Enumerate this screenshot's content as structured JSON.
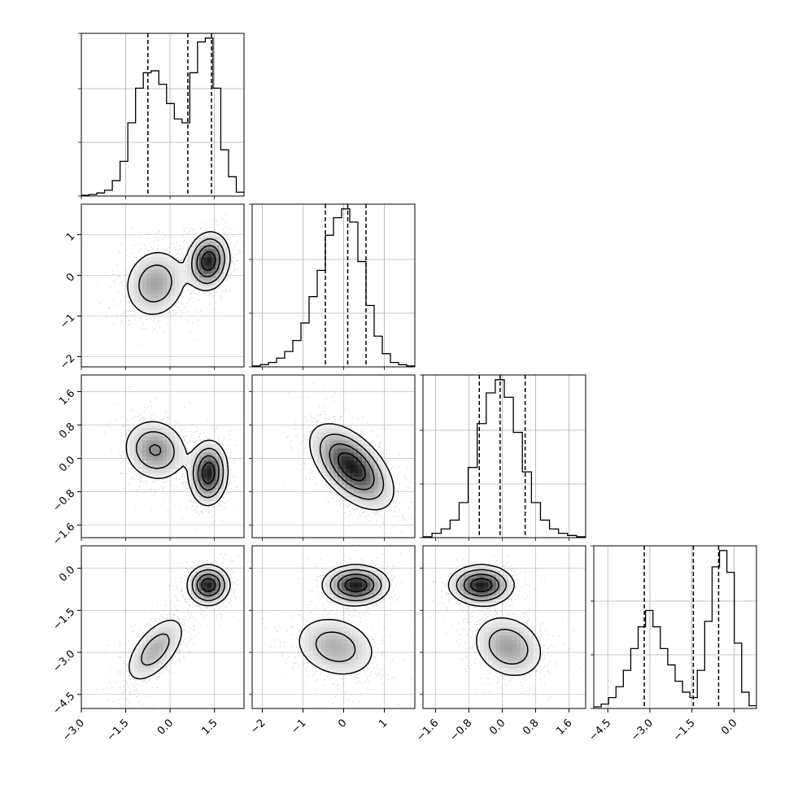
{
  "chart_data": {
    "type": "corner",
    "n_params": 4,
    "grid": true,
    "colors": {
      "points": "#808080",
      "contour": "#000000",
      "frame": "#000000",
      "grid": "#b0b0b0"
    },
    "params": [
      {
        "index": 0,
        "range": [
          -3.0,
          2.5
        ],
        "ticks": [
          -3.0,
          -1.5,
          0.0,
          1.5
        ],
        "tick_labels": [
          "−3.0",
          "−1.5",
          "0.0",
          "1.5"
        ]
      },
      {
        "index": 1,
        "range": [
          -2.25,
          1.75
        ],
        "ticks": [
          -2,
          -1,
          0,
          1
        ],
        "tick_labels": [
          "−2",
          "−1",
          "0",
          "1"
        ]
      },
      {
        "index": 2,
        "range": [
          -1.9,
          2.0
        ],
        "ticks": [
          -1.6,
          -0.8,
          0.0,
          0.8,
          1.6
        ],
        "tick_labels": [
          "−1.6",
          "−0.8",
          "0.0",
          "0.8",
          "1.6"
        ]
      },
      {
        "index": 3,
        "range": [
          -5.0,
          0.8
        ],
        "ticks": [
          -4.5,
          -3.0,
          -1.5,
          0.0
        ],
        "tick_labels": [
          "−4.5",
          "−3.0",
          "−1.5",
          "0.0"
        ]
      }
    ],
    "histograms": [
      {
        "param": 0,
        "bin_edges": [
          -3.0,
          2.5
        ],
        "counts": [
          0.2,
          0.4,
          0.8,
          1.5,
          4,
          9,
          19,
          28,
          32,
          32.5,
          29,
          24,
          20,
          19,
          32,
          40,
          41,
          28,
          12,
          5,
          1
        ],
        "quantiles": [
          -0.75,
          0.6,
          1.4
        ]
      },
      {
        "param": 1,
        "bin_edges": [
          -2.25,
          1.75
        ],
        "counts": [
          0.2,
          0.5,
          1,
          2,
          3.5,
          6,
          10,
          16,
          22,
          30,
          34,
          36,
          33,
          24,
          14,
          7,
          3,
          1,
          0.5,
          0.2
        ],
        "quantiles": [
          -0.45,
          0.1,
          0.55
        ]
      },
      {
        "param": 2,
        "bin_edges": [
          -1.9,
          2.0
        ],
        "counts": [
          0.2,
          1,
          2,
          4,
          8,
          16,
          26,
          33,
          36,
          32,
          24,
          15,
          8,
          4,
          2,
          1,
          0.5,
          0.2
        ],
        "quantiles": [
          -0.55,
          -0.05,
          0.55
        ]
      },
      {
        "param": 3,
        "bin_edges": [
          -5.0,
          0.8
        ],
        "counts": [
          0.3,
          0.8,
          2,
          4,
          7,
          11,
          15,
          18,
          15,
          11,
          8,
          5,
          3,
          2,
          7,
          16,
          26,
          29,
          25,
          12,
          3,
          0.5
        ],
        "quantiles": [
          -3.2,
          -1.45,
          -0.55
        ]
      }
    ],
    "joint": [
      {
        "x": 0,
        "y": 1,
        "components": [
          {
            "w": 0.5,
            "mx": -0.5,
            "my": -0.2,
            "sx": 0.55,
            "sy": 0.45,
            "rho": 0.1
          },
          {
            "w": 0.5,
            "mx": 1.3,
            "my": 0.35,
            "sx": 0.35,
            "sy": 0.35,
            "rho": 0.1
          }
        ]
      },
      {
        "x": 0,
        "y": 2,
        "components": [
          {
            "w": 0.5,
            "mx": -0.5,
            "my": 0.2,
            "sx": 0.55,
            "sy": 0.38,
            "rho": -0.1
          },
          {
            "w": 0.5,
            "mx": 1.3,
            "my": -0.35,
            "sx": 0.32,
            "sy": 0.38,
            "rho": 0.05
          }
        ]
      },
      {
        "x": 0,
        "y": 3,
        "components": [
          {
            "w": 0.5,
            "mx": -0.5,
            "my": -2.9,
            "sx": 0.55,
            "sy": 0.65,
            "rho": 0.6
          },
          {
            "w": 0.5,
            "mx": 1.3,
            "my": -0.6,
            "sx": 0.35,
            "sy": 0.35,
            "rho": 0.0
          }
        ]
      },
      {
        "x": 1,
        "y": 2,
        "components": [
          {
            "w": 1.0,
            "mx": 0.2,
            "my": -0.2,
            "sx": 0.5,
            "sy": 0.5,
            "rho": -0.55
          }
        ]
      },
      {
        "x": 1,
        "y": 3,
        "components": [
          {
            "w": 0.5,
            "mx": -0.2,
            "my": -2.8,
            "sx": 0.55,
            "sy": 0.6,
            "rho": -0.2
          },
          {
            "w": 0.5,
            "mx": 0.3,
            "my": -0.6,
            "sx": 0.4,
            "sy": 0.35,
            "rho": 0.0
          }
        ]
      },
      {
        "x": 2,
        "y": 3,
        "components": [
          {
            "w": 0.5,
            "mx": 0.15,
            "my": -2.8,
            "sx": 0.45,
            "sy": 0.6,
            "rho": -0.2
          },
          {
            "w": 0.5,
            "mx": -0.5,
            "my": -0.6,
            "sx": 0.38,
            "sy": 0.35,
            "rho": 0.0
          }
        ]
      }
    ]
  }
}
